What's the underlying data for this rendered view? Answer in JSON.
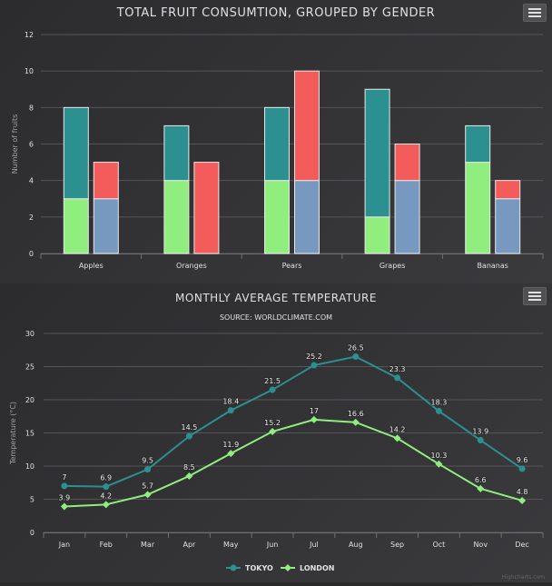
{
  "charts": {
    "top": {
      "title": "TOTAL FRUIT CONSUMTION, GROUPED BY GENDER",
      "menu_icon": "hamburger-menu-icon"
    },
    "bottom": {
      "title": "MONTHLY AVERAGE TEMPERATURE",
      "subtitle": "SOURCE: WORLDCLIMATE.COM",
      "menu_icon": "hamburger-menu-icon",
      "credit": "Highcharts.com"
    }
  },
  "chart_data": [
    {
      "type": "bar",
      "stacked": true,
      "title": "TOTAL FRUIT CONSUMTION, GROUPED BY GENDER",
      "categories": [
        "Apples",
        "Oranges",
        "Pears",
        "Grapes",
        "Bananas"
      ],
      "ylabel": "Number of fruits",
      "ylim": [
        0,
        12
      ],
      "yticks": [
        0,
        2,
        4,
        6,
        8,
        10,
        12
      ],
      "grid": true,
      "legend": "none",
      "series": [
        {
          "stack": "male",
          "color": "#2b908f",
          "values": [
            5,
            3,
            4,
            7,
            2
          ]
        },
        {
          "stack": "male",
          "color": "#90ee7e",
          "values": [
            3,
            4,
            4,
            2,
            5
          ]
        },
        {
          "stack": "female",
          "color": "#f45b5b",
          "values": [
            2,
            5,
            6,
            2,
            1
          ]
        },
        {
          "stack": "female",
          "color": "#7798bf",
          "values": [
            3,
            0,
            4,
            4,
            3
          ]
        }
      ]
    },
    {
      "type": "line",
      "title": "MONTHLY AVERAGE TEMPERATURE",
      "subtitle": "SOURCE: WORLDCLIMATE.COM",
      "categories": [
        "Jan",
        "Feb",
        "Mar",
        "Apr",
        "May",
        "Jun",
        "Jul",
        "Aug",
        "Sep",
        "Oct",
        "Nov",
        "Dec"
      ],
      "ylabel": "Temperature (°C)",
      "ylim": [
        0,
        30
      ],
      "yticks": [
        0,
        5,
        10,
        15,
        20,
        25,
        30
      ],
      "grid": true,
      "legend": "bottom-center",
      "series": [
        {
          "name": "TOKYO",
          "color": "#2b908f",
          "marker": "circle",
          "values": [
            7,
            6.9,
            9.5,
            14.5,
            18.4,
            21.5,
            25.2,
            26.5,
            23.3,
            18.3,
            13.9,
            9.6
          ]
        },
        {
          "name": "LONDON",
          "color": "#90ee7e",
          "marker": "diamond",
          "values": [
            3.9,
            4.2,
            5.7,
            8.5,
            11.9,
            15.2,
            17,
            16.6,
            14.2,
            10.3,
            6.6,
            4.8
          ]
        }
      ]
    }
  ]
}
